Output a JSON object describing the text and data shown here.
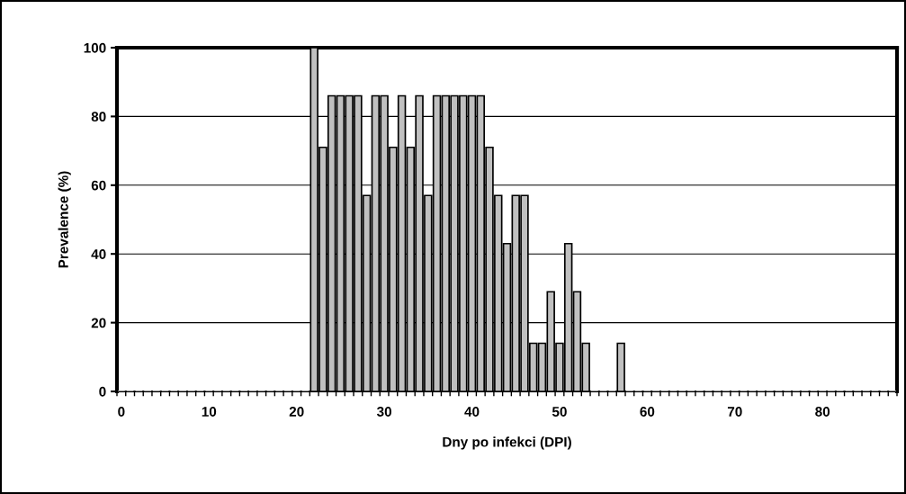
{
  "chart_data": {
    "type": "bar",
    "xlabel": "Dny po infekci (DPI)",
    "ylabel": "Prevalence (%)",
    "categories": [
      "0",
      null,
      null,
      null,
      null,
      null,
      null,
      null,
      null,
      null,
      "10",
      null,
      null,
      null,
      null,
      null,
      null,
      null,
      null,
      null,
      "20",
      null,
      null,
      null,
      null,
      null,
      null,
      null,
      null,
      null,
      "30",
      null,
      null,
      null,
      null,
      null,
      null,
      null,
      null,
      null,
      "40",
      null,
      null,
      null,
      null,
      null,
      null,
      null,
      null,
      null,
      "50",
      null,
      null,
      null,
      null,
      null,
      null,
      null,
      null,
      null,
      "60",
      null,
      null,
      null,
      null,
      null,
      null,
      null,
      null,
      null,
      "70",
      null,
      null,
      null,
      null,
      null,
      null,
      null,
      null,
      null,
      "80",
      null,
      null,
      null,
      null,
      null,
      null,
      null,
      null
    ],
    "values": [
      0,
      0,
      0,
      0,
      0,
      0,
      0,
      0,
      0,
      0,
      0,
      0,
      0,
      0,
      0,
      0,
      0,
      0,
      0,
      0,
      0,
      0,
      100,
      71,
      86,
      86,
      86,
      86,
      57,
      86,
      86,
      71,
      86,
      71,
      86,
      57,
      86,
      86,
      86,
      86,
      86,
      86,
      71,
      57,
      43,
      57,
      57,
      14,
      14,
      29,
      14,
      43,
      29,
      14,
      0,
      0,
      0,
      14,
      0,
      0,
      0,
      0,
      0,
      0,
      0,
      0,
      0,
      0,
      0,
      0,
      0,
      0,
      0,
      0,
      0,
      0,
      0,
      0,
      0,
      0,
      0,
      0,
      0,
      0,
      0,
      0,
      0,
      0,
      0
    ],
    "color": "#c0c0c0",
    "ylim": [
      0,
      100
    ],
    "yticks": [
      0,
      20,
      40,
      60,
      80,
      100
    ],
    "grid": "y"
  }
}
